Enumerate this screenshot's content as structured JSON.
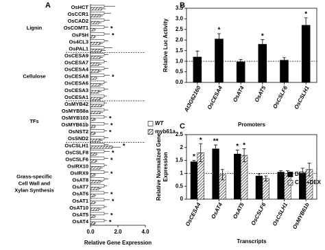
{
  "chart_data": [
    {
      "type": "hbar",
      "panel": "A",
      "xlabel": "Relative Gene Expression",
      "categories": [
        "OsHCT",
        "OsCCR1",
        "OsCAD2",
        "OsCOMT1",
        "OsF5H",
        "Os4CL3",
        "OsPAL1",
        "OsCESA9",
        "OsCESA7",
        "OsCESA4",
        "OsCESA8",
        "OsCESA6",
        "OsCESA3",
        "OsCESA1",
        "OsMYB42",
        "OsMYB58a",
        "OsMYB103",
        "OsMYB61b",
        "OsNST2",
        "OsSND2",
        "OsCSLH1",
        "OsCSLF8",
        "OsCSLF6",
        "OsIRX10",
        "OsIRX9",
        "OsAT8",
        "OsAT7",
        "OsAT6",
        "OsAT1",
        "OsAT10",
        "OsAT5",
        "OsAT4"
      ],
      "series": [
        {
          "name": "WT",
          "color": "#ffffff",
          "hatched": false,
          "values": [
            1,
            1,
            1,
            1,
            1,
            1,
            1,
            1,
            1,
            1,
            1,
            1,
            1,
            1,
            1,
            1,
            1,
            1,
            1,
            1,
            1,
            1,
            1,
            1,
            1,
            1,
            1,
            1,
            1,
            1,
            1,
            1
          ],
          "errors": [
            0.8,
            0.5,
            0.4,
            0.3,
            0.4,
            0.3,
            0.6,
            0.3,
            0.2,
            0.3,
            0.4,
            0.2,
            0.3,
            0.2,
            0.2,
            0.3,
            0.2,
            0.3,
            0.2,
            0.3,
            0.3,
            0.4,
            0.3,
            0.2,
            0.3,
            0.3,
            0.2,
            0.3,
            0.4,
            0.2,
            0.3,
            0.2
          ]
        },
        {
          "name": "myb61a",
          "color": "#000000",
          "hatched": true,
          "values": [
            0.8,
            0.7,
            0.6,
            0.3,
            0.3,
            0.7,
            0.8,
            0.7,
            0.6,
            0.6,
            0.4,
            0.7,
            0.6,
            0.7,
            0.8,
            0.7,
            0.3,
            0.3,
            0.3,
            0.7,
            1.6,
            0.4,
            0.4,
            0.7,
            0.3,
            0.7,
            0.6,
            0.3,
            0.3,
            0.6,
            0.3,
            0.3
          ],
          "errors": [
            0.3,
            0.2,
            0.2,
            0.1,
            0.1,
            0.2,
            0.3,
            0.2,
            0.2,
            0.2,
            0.1,
            0.2,
            0.2,
            0.2,
            0.2,
            0.2,
            0.1,
            0.1,
            0.1,
            0.2,
            0.6,
            0.1,
            0.1,
            0.2,
            0.1,
            0.2,
            0.2,
            0.1,
            0.1,
            0.2,
            0.1,
            0.1
          ]
        }
      ],
      "xlim": [
        0,
        4
      ],
      "xticks": [
        {
          "value": 0,
          "label": "0.0"
        },
        {
          "value": 2,
          "label": "2.0"
        },
        {
          "value": 4,
          "label": "4.0"
        }
      ],
      "groups": [
        {
          "label": [
            "Lignin"
          ],
          "from": "OsHCT",
          "to": "OsPAL1"
        },
        {
          "label": [
            "Cellulose"
          ],
          "from": "OsCESA9",
          "to": "OsCESA1"
        },
        {
          "label": [
            "TFs"
          ],
          "from": "OsMYB42",
          "to": "OsSND2"
        },
        {
          "label": [
            "Grass-specific",
            "Cell Wall and",
            "Xylan Synthesis"
          ],
          "from": "OsCSLH1",
          "to": "OsAT4"
        }
      ],
      "annotations": [
        {
          "text": "*",
          "category": "OsCOMT1"
        },
        {
          "text": "*",
          "category": "OsF5H"
        },
        {
          "text": "*",
          "category": "OsCESA8"
        },
        {
          "text": "*",
          "category": "OsMYB103"
        },
        {
          "text": "*",
          "category": "OsMYB61b"
        },
        {
          "text": "*",
          "category": "OsNST2"
        },
        {
          "text": "*",
          "category": "OsCSLH1"
        },
        {
          "text": "*",
          "category": "OsCSLF8"
        },
        {
          "text": "*",
          "category": "OsCSLF6"
        },
        {
          "text": "*",
          "category": "OsIRX9"
        },
        {
          "text": "*",
          "category": "OsAT6"
        },
        {
          "text": "*",
          "category": "OsAT1"
        },
        {
          "text": "*",
          "category": "OsAT5"
        },
        {
          "text": "*",
          "category": "OsAT4"
        }
      ],
      "legend": "right"
    },
    {
      "type": "bar",
      "panel": "B",
      "ylabel": "Relative Luc Activity",
      "xlabel": "Promoters",
      "categories": [
        "At3G62160",
        "OsCESA4",
        "OsAT4",
        "OsAT5",
        "OsCSLF6",
        "OsCSLH1"
      ],
      "values": [
        1.2,
        2.05,
        0.97,
        1.8,
        1.05,
        2.7
      ],
      "errors": [
        0.28,
        0.25,
        0.12,
        0.22,
        0.12,
        0.35
      ],
      "color": "#000000",
      "ylim": [
        0,
        3.5
      ],
      "yticks": [
        {
          "value": 0,
          "label": "0.0"
        },
        {
          "value": 0.5,
          "label": "0.5"
        },
        {
          "value": 1,
          "label": "1.0"
        },
        {
          "value": 1.5,
          "label": "1.5"
        },
        {
          "value": 2,
          "label": "2.0"
        },
        {
          "value": 2.5,
          "label": "2.5"
        },
        {
          "value": 3,
          "label": "3.0"
        },
        {
          "value": 3.5,
          "label": "3.5"
        }
      ],
      "hline": 1,
      "annotations": [
        {
          "text": "*",
          "category": "OsCESA4"
        },
        {
          "text": "*",
          "category": "OsAT5"
        },
        {
          "text": "*",
          "category": "OsCSLH1"
        }
      ]
    },
    {
      "type": "bar",
      "panel": "C",
      "ylabel": [
        "Relative Normalized Gene",
        "Expression"
      ],
      "xlabel": "Transcripts",
      "categories": [
        "OsCESA4",
        "OsAT4",
        "OsAT5",
        "OsCSLF6",
        "OsCSLH1",
        "OsMYB61b"
      ],
      "series": [
        {
          "name": "DEX",
          "color": "#000000",
          "hatched": false,
          "values": [
            1.45,
            1.95,
            1.75,
            0.9,
            1.05,
            1.0
          ],
          "errors": [
            0.05,
            0.15,
            0.15,
            0.08,
            0.05,
            0.2
          ]
        },
        {
          "name": "CHX+DEX",
          "color": "#000000",
          "hatched": true,
          "values": [
            1.8,
            0.95,
            1.7,
            0.8,
            1.0,
            1.15
          ],
          "errors": [
            0.35,
            0.2,
            0.25,
            0.1,
            0.1,
            0.25
          ]
        }
      ],
      "ylim": [
        0,
        2.5
      ],
      "yticks": [
        {
          "value": 0,
          "label": "0"
        },
        {
          "value": 0.5,
          "label": "0.5"
        },
        {
          "value": 1,
          "label": "1"
        },
        {
          "value": 1.5,
          "label": "1.5"
        },
        {
          "value": 2,
          "label": "2"
        },
        {
          "value": 2.5,
          "label": "2.5"
        }
      ],
      "hline": 1,
      "annotations": [
        {
          "text": "*",
          "category": "OsCESA4",
          "series": "DEX"
        },
        {
          "text": "*",
          "category": "OsCESA4",
          "series": "CHX+DEX"
        },
        {
          "text": "**",
          "category": "OsAT4",
          "series": "DEX"
        },
        {
          "text": "*",
          "category": "OsAT5",
          "series": "DEX"
        },
        {
          "text": "*",
          "category": "OsAT5",
          "series": "CHX+DEX"
        }
      ],
      "legend": "right"
    }
  ]
}
